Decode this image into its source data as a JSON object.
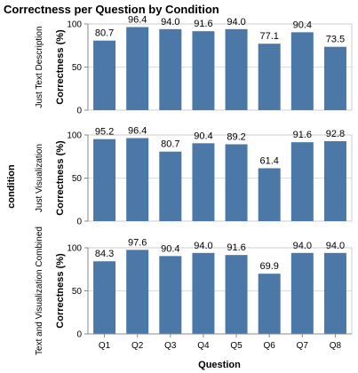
{
  "chart_data": {
    "type": "bar",
    "title": "Correctness per Question by Condition",
    "xlabel": "Question",
    "ylabel": "Correctness (%)",
    "facet_label": "condition",
    "categories": [
      "Q1",
      "Q2",
      "Q3",
      "Q4",
      "Q5",
      "Q6",
      "Q7",
      "Q8"
    ],
    "ylim": [
      0,
      100
    ],
    "yticks": [
      0,
      50,
      100
    ],
    "grid": true,
    "bar_color": "#4c78a8",
    "series": [
      {
        "name": "Just Text Description",
        "values": [
          80.7,
          96.4,
          94.0,
          91.6,
          94.0,
          77.1,
          90.4,
          73.5
        ]
      },
      {
        "name": "Just Visualization",
        "values": [
          95.2,
          96.4,
          80.7,
          90.4,
          89.2,
          61.4,
          91.6,
          92.8
        ]
      },
      {
        "name": "Text and Visualization Combined",
        "values": [
          84.3,
          97.6,
          90.4,
          94.0,
          91.6,
          69.9,
          94.0,
          94.0
        ]
      }
    ]
  }
}
